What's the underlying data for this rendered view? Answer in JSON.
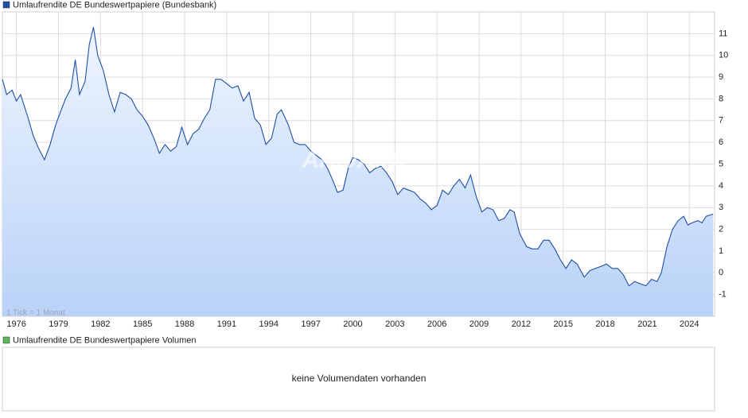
{
  "chart_data": {
    "type": "area",
    "annotation": "1 Tick = 1 Monat",
    "watermark": "ARIVA.DE",
    "xlim": [
      1975,
      2025.8
    ],
    "xticks": [
      1976,
      1979,
      1982,
      1985,
      1988,
      1991,
      1994,
      1997,
      2000,
      2003,
      2006,
      2009,
      2012,
      2015,
      2018,
      2021,
      2024
    ],
    "ylim": [
      -2,
      12
    ],
    "yticks": [
      -1,
      0,
      1,
      2,
      3,
      4,
      5,
      6,
      7,
      8,
      9,
      10,
      11
    ],
    "grid": true,
    "x": [
      1975.0,
      1975.3,
      1975.7,
      1976.0,
      1976.3,
      1976.8,
      1977.2,
      1977.6,
      1978.0,
      1978.4,
      1978.8,
      1979.2,
      1979.5,
      1979.9,
      1980.2,
      1980.5,
      1980.9,
      1981.2,
      1981.5,
      1981.8,
      1982.2,
      1982.6,
      1983.0,
      1983.4,
      1983.8,
      1984.2,
      1984.6,
      1985.0,
      1985.4,
      1985.8,
      1986.2,
      1986.6,
      1987.0,
      1987.4,
      1987.8,
      1988.2,
      1988.6,
      1989.0,
      1989.4,
      1989.8,
      1990.2,
      1990.6,
      1991.0,
      1991.4,
      1991.8,
      1992.2,
      1992.6,
      1993.0,
      1993.4,
      1993.8,
      1994.2,
      1994.6,
      1994.9,
      1995.4,
      1995.8,
      1996.2,
      1996.6,
      1997.0,
      1997.4,
      1997.8,
      1998.2,
      1998.6,
      1998.9,
      1999.3,
      1999.7,
      2000.0,
      2000.4,
      2000.8,
      2001.2,
      2001.6,
      2002.0,
      2002.4,
      2002.8,
      2003.2,
      2003.6,
      2004.0,
      2004.4,
      2004.8,
      2005.2,
      2005.6,
      2006.0,
      2006.4,
      2006.8,
      2007.2,
      2007.6,
      2008.0,
      2008.4,
      2008.8,
      2009.2,
      2009.6,
      2010.0,
      2010.4,
      2010.8,
      2011.2,
      2011.5,
      2011.9,
      2012.4,
      2012.8,
      2013.2,
      2013.6,
      2014.0,
      2014.4,
      2014.8,
      2015.2,
      2015.6,
      2016.0,
      2016.5,
      2016.9,
      2017.3,
      2017.7,
      2018.1,
      2018.5,
      2018.9,
      2019.3,
      2019.7,
      2020.1,
      2020.5,
      2020.9,
      2021.3,
      2021.7,
      2022.0,
      2022.4,
      2022.8,
      2023.2,
      2023.6,
      2023.9,
      2024.2,
      2024.6,
      2024.9,
      2025.2,
      2025.7
    ],
    "series": [
      {
        "name": "Umlaufrendite DE Bundeswertpapiere (Bundesbank)",
        "color": "#1f4fa8",
        "values": [
          8.9,
          8.2,
          8.4,
          7.9,
          8.2,
          7.2,
          6.3,
          5.7,
          5.2,
          5.9,
          6.8,
          7.5,
          8.0,
          8.5,
          9.8,
          8.2,
          8.8,
          10.5,
          11.3,
          10.0,
          9.3,
          8.2,
          7.4,
          8.3,
          8.2,
          8.0,
          7.5,
          7.2,
          6.8,
          6.2,
          5.5,
          5.9,
          5.6,
          5.8,
          6.7,
          5.9,
          6.4,
          6.6,
          7.1,
          7.5,
          8.9,
          8.9,
          8.7,
          8.5,
          8.6,
          7.9,
          8.3,
          7.1,
          6.8,
          5.9,
          6.2,
          7.3,
          7.5,
          6.8,
          6.0,
          5.9,
          5.9,
          5.6,
          5.4,
          5.2,
          4.8,
          4.2,
          3.7,
          3.8,
          4.9,
          5.3,
          5.2,
          5.0,
          4.6,
          4.8,
          4.9,
          4.6,
          4.2,
          3.6,
          3.9,
          3.8,
          3.7,
          3.4,
          3.2,
          2.9,
          3.1,
          3.8,
          3.6,
          4.0,
          4.3,
          3.9,
          4.5,
          3.5,
          2.8,
          3.0,
          2.9,
          2.4,
          2.5,
          2.9,
          2.8,
          1.8,
          1.2,
          1.1,
          1.1,
          1.5,
          1.5,
          1.1,
          0.6,
          0.2,
          0.6,
          0.4,
          -0.2,
          0.1,
          0.2,
          0.3,
          0.4,
          0.2,
          0.2,
          -0.1,
          -0.6,
          -0.4,
          -0.5,
          -0.6,
          -0.3,
          -0.4,
          0.0,
          1.2,
          2.0,
          2.4,
          2.6,
          2.2,
          2.3,
          2.4,
          2.3,
          2.6,
          2.7
        ]
      }
    ],
    "volume_panel": {
      "name": "Umlaufrendite DE Bundeswertpapiere Volumen",
      "color": "#5cb85c",
      "message": "keine Volumendaten vorhanden"
    }
  }
}
